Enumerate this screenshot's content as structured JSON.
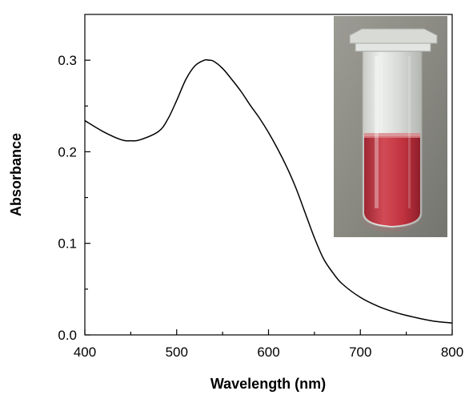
{
  "chart_data": {
    "type": "line",
    "xlabel": "Wavelength (nm)",
    "ylabel": "Absorbance",
    "xlim": [
      400,
      800
    ],
    "ylim": [
      0,
      0.35
    ],
    "x_ticks": [
      400,
      500,
      600,
      700,
      800
    ],
    "y_ticks": [
      0.0,
      0.1,
      0.2,
      0.3
    ],
    "x_tick_labels": [
      "400",
      "500",
      "600",
      "700",
      "800"
    ],
    "y_tick_labels": [
      "0.0",
      "0.1",
      "0.2",
      "0.3"
    ],
    "grid": false,
    "series": [
      {
        "color": "#000000",
        "x": [
          400,
          420,
          440,
          450,
          460,
          480,
          490,
          500,
          510,
          520,
          530,
          535,
          540,
          550,
          560,
          570,
          580,
          590,
          600,
          610,
          620,
          630,
          640,
          650,
          660,
          670,
          680,
          700,
          720,
          740,
          760,
          780,
          800
        ],
        "y": [
          0.234,
          0.222,
          0.213,
          0.212,
          0.213,
          0.222,
          0.235,
          0.256,
          0.279,
          0.294,
          0.3,
          0.3,
          0.299,
          0.291,
          0.279,
          0.266,
          0.251,
          0.237,
          0.221,
          0.203,
          0.183,
          0.16,
          0.133,
          0.106,
          0.083,
          0.068,
          0.056,
          0.041,
          0.031,
          0.024,
          0.019,
          0.015,
          0.013
        ]
      }
    ],
    "inset": {
      "type": "photo",
      "subject": "cuvette",
      "liquid_color": "#c0323e",
      "background_color": "#8a8a82"
    }
  }
}
